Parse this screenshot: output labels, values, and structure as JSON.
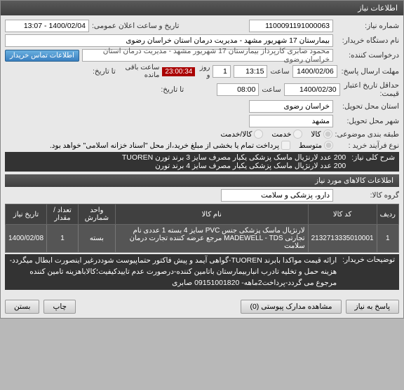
{
  "window": {
    "title": "اطلاعات نیاز"
  },
  "header": {
    "need_no_lbl": "شماره نیاز:",
    "need_no": "1100091191000063",
    "announce_lbl": "تاریخ و ساعت اعلان عمومی:",
    "announce": "1400/02/04 - 13:07",
    "buyer_lbl": "نام دستگاه خریدار:",
    "buyer": "بیمارستان 17 شهریور مشهد - مدیریت درمان استان خراسان رضوی",
    "requester_lbl": "درخواست کننده:",
    "requester": "محمود صابری کارپرداز بیمارستان 17 شهریور مشهد - مدیریت درمان استان خراسان رضوی",
    "contact_btn": "اطلاعات تماس خریدار"
  },
  "deadline": {
    "reply_lbl": "مهلت ارسال پاسخ:",
    "date": "1400/02/06",
    "time_lbl": "ساعت",
    "time": "13:15",
    "days": "1",
    "days_lbl": "روز و",
    "countdown": "23:00:34",
    "remain_lbl": "ساعت باقی مانده",
    "to_date_lbl": "تا تاریخ:"
  },
  "credit": {
    "min_lbl": "حداقل تاریخ اعتبار",
    "price_lbl": "قیمت:",
    "date": "1400/02/30",
    "time_lbl": "ساعت",
    "time": "08:00",
    "to_date_lbl": "تا تاریخ:"
  },
  "delivery": {
    "province_lbl": "استان محل تحویل:",
    "province": "خراسان رضوی",
    "city_lbl": "شهر محل تحویل:",
    "city": "مشهد"
  },
  "budget": {
    "cat_lbl": "طبقه بندی موضوعی:",
    "opt_goods": "کالا",
    "opt_service": "خدمت",
    "opt_both": "کالا/خدمت"
  },
  "process": {
    "type_lbl": "نوع فرآیند خرید :",
    "opt_mid": "متوسط",
    "note": "پرداخت تمام یا بخشی از مبلغ خرید،از محل \"اسناد خزانه اسلامی\" خواهد بود."
  },
  "summary": {
    "lbl": "شرح کلی نیاز:",
    "line1": "200 عدد لارنژیال ماسک پزشکی  یکبار مصرف سایز 3 برند تورن TUOREN",
    "line2": "200 عدد لارنژیال ماسک پزشکی یکبار مصرف سایز 4 برند تورن"
  },
  "items_section": {
    "hdr": "اطلاعات کالاهای مورد نیاز",
    "group_lbl": "گروه کالا:",
    "group": "دارو، پزشکی و سلامت"
  },
  "table": {
    "cols": [
      "ردیف",
      "کد کالا",
      "نام کالا",
      "واحد شمارش",
      "تعداد / مقدار",
      "تاریخ نیاز"
    ],
    "rows": [
      [
        "1",
        "2132713335010001",
        "لارنژیال ماسک پزشکی جنس PVC سایز 4 بسته 1 عددی نام تجارتی MADEWELL - TDS مرجع عرضه کننده تجارت درمان سلامت",
        "بسته",
        "1",
        "1400/02/08"
      ]
    ]
  },
  "notes": {
    "lbl": "توضیحات خریدار:",
    "text": "ارائه قیمت مواکدا بابرند TUOREN-گواهی آیمد و پیش فاکتور حتماپیوست شوددرغیر اینصورت ابطال میگردد-هزینه حمل و تخلیه تادرب انباربیمارستان باتامین کننده-درصورت عدم تاییدکیفیت؛کالاباهزینه تامین کننده مرجوع می گردد-پرداخت2ماهه- 09151001820 صابری"
  },
  "footer": {
    "reply_btn": "پاسخ به نیاز",
    "attach_btn": "مشاهده مدارک پیوستی (0)",
    "print_btn": "چاپ",
    "close_btn": "بستن"
  }
}
